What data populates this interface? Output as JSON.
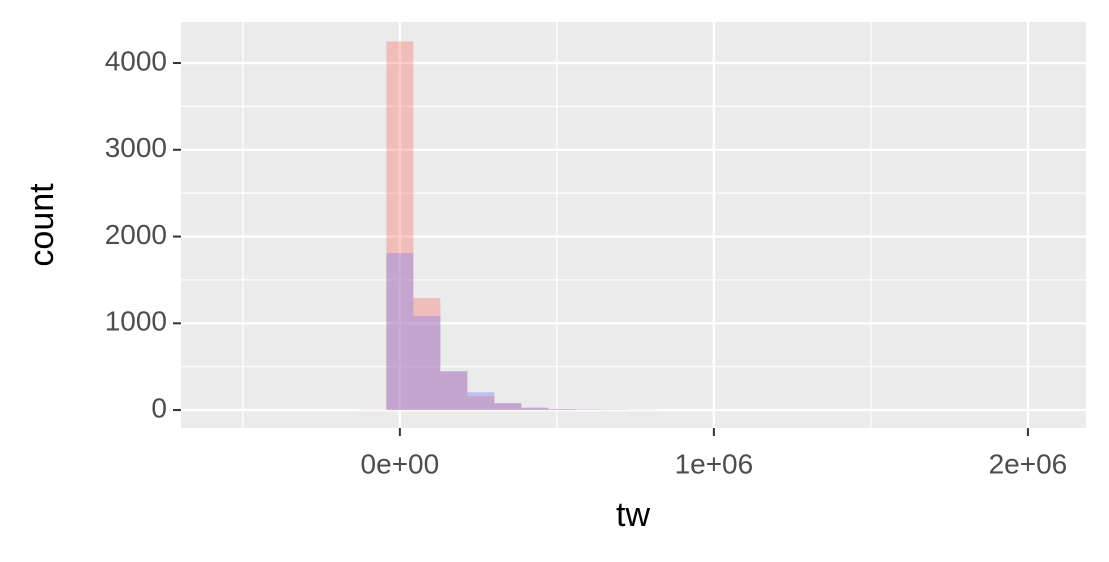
{
  "chart_data": {
    "type": "histogram",
    "x_label": "tw",
    "y_label": "count",
    "bins": [
      -129000,
      -43000,
      43000,
      129000,
      215000,
      301000,
      387000,
      473000,
      559000,
      645000,
      731000,
      817000,
      903000,
      989000,
      1075000,
      1161000,
      1247000,
      1333000,
      1419000,
      1505000,
      1591000,
      1677000,
      1763000,
      1849000,
      1935000,
      2021000
    ],
    "series": [
      {
        "color": "#f8766d",
        "values": [
          5,
          4250,
          1290,
          440,
          160,
          75,
          25,
          10,
          6,
          4,
          2,
          0,
          0,
          0,
          0,
          0,
          0,
          0,
          0,
          0,
          0,
          0,
          0,
          0,
          0
        ]
      },
      {
        "color": "#7b7bf0",
        "values": [
          0,
          1810,
          1085,
          450,
          205,
          80,
          28,
          10,
          6,
          4,
          2,
          0,
          0,
          0,
          0,
          0,
          0,
          0,
          0,
          0,
          0,
          0,
          0,
          0,
          0
        ]
      }
    ],
    "xlim": [
      -697000,
      2185000
    ],
    "ylim": [
      -207,
      4473
    ],
    "xticks": [
      {
        "value": 0,
        "label": "0e+00"
      },
      {
        "value": 1000000,
        "label": "1e+06"
      },
      {
        "value": 2000000,
        "label": "2e+06"
      }
    ],
    "yticks": [
      0,
      1000,
      2000,
      3000,
      4000
    ],
    "grid": true
  }
}
